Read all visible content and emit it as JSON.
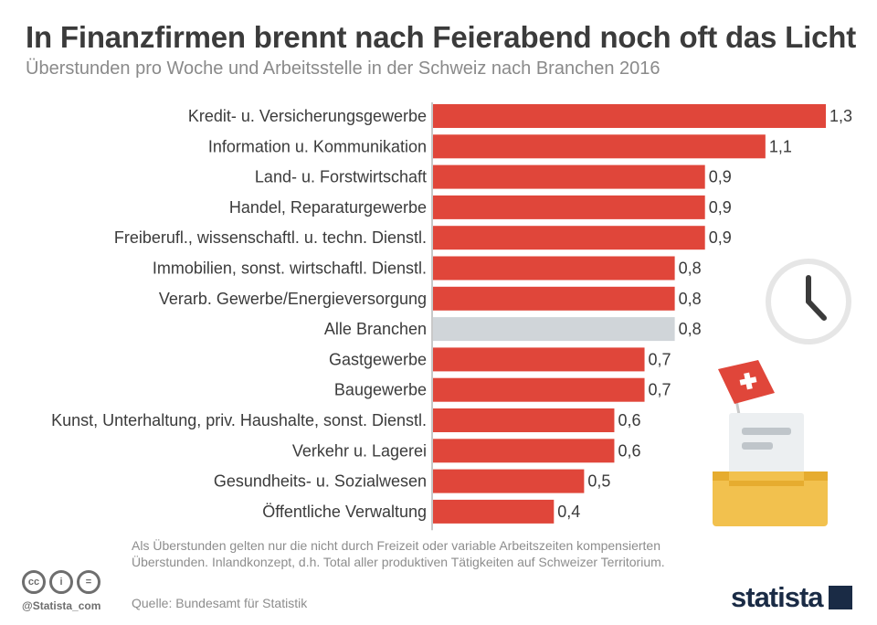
{
  "header": {
    "title": "In Finanzfirmen brennt nach Feierabend noch oft das Licht",
    "subtitle": "Überstunden pro Woche und Arbeitsstelle in der Schweiz nach Branchen 2016"
  },
  "chart_data": {
    "type": "bar",
    "orientation": "horizontal",
    "title": "In Finanzfirmen brennt nach Feierabend noch oft das Licht",
    "subtitle": "Überstunden pro Woche und Arbeitsstelle in der Schweiz nach Branchen 2016",
    "categories": [
      "Kredit- u. Versicherungsgewerbe",
      "Information u. Kommunikation",
      "Land- u. Forstwirtschaft",
      "Handel, Reparaturgewerbe",
      "Freiberufl., wissenschaftl. u. techn. Dienstl.",
      "Immobilien, sonst. wirtschaftl. Dienstl.",
      "Verarb. Gewerbe/Energieversorgung",
      "Alle Branchen",
      "Gastgewerbe",
      "Baugewerbe",
      "Kunst, Unterhaltung, priv. Haushalte, sonst. Dienstl.",
      "Verkehr u. Lagerei",
      "Gesundheits- u. Sozialwesen",
      "Öffentliche Verwaltung"
    ],
    "values": [
      1.3,
      1.1,
      0.9,
      0.9,
      0.9,
      0.8,
      0.8,
      0.8,
      0.7,
      0.7,
      0.6,
      0.6,
      0.5,
      0.4
    ],
    "value_labels": [
      "1,3",
      "1,1",
      "0,9",
      "0,9",
      "0,9",
      "0,8",
      "0,8",
      "0,8",
      "0,7",
      "0,7",
      "0,6",
      "0,6",
      "0,5",
      "0,4"
    ],
    "highlight_category": "Alle Branchen",
    "xlim": [
      0,
      1.3
    ],
    "grid": false,
    "colors": {
      "bar": "#e0463a",
      "highlight": "#d0d5d9",
      "label": "#3b3b3b"
    }
  },
  "footer": {
    "note": "Als Überstunden gelten nur die nicht durch Freizeit oder variable Arbeitszeiten kompensierten Überstunden. Inlandkonzept, d.h. Total aller produktiven Tätigkeiten auf Schweizer Territorium.",
    "source": "Quelle: Bundesamt für Statistik",
    "handle": "@Statista_com",
    "logo": "statista",
    "cc_icons": [
      "cc-icon",
      "by-icon",
      "nd-icon"
    ]
  }
}
